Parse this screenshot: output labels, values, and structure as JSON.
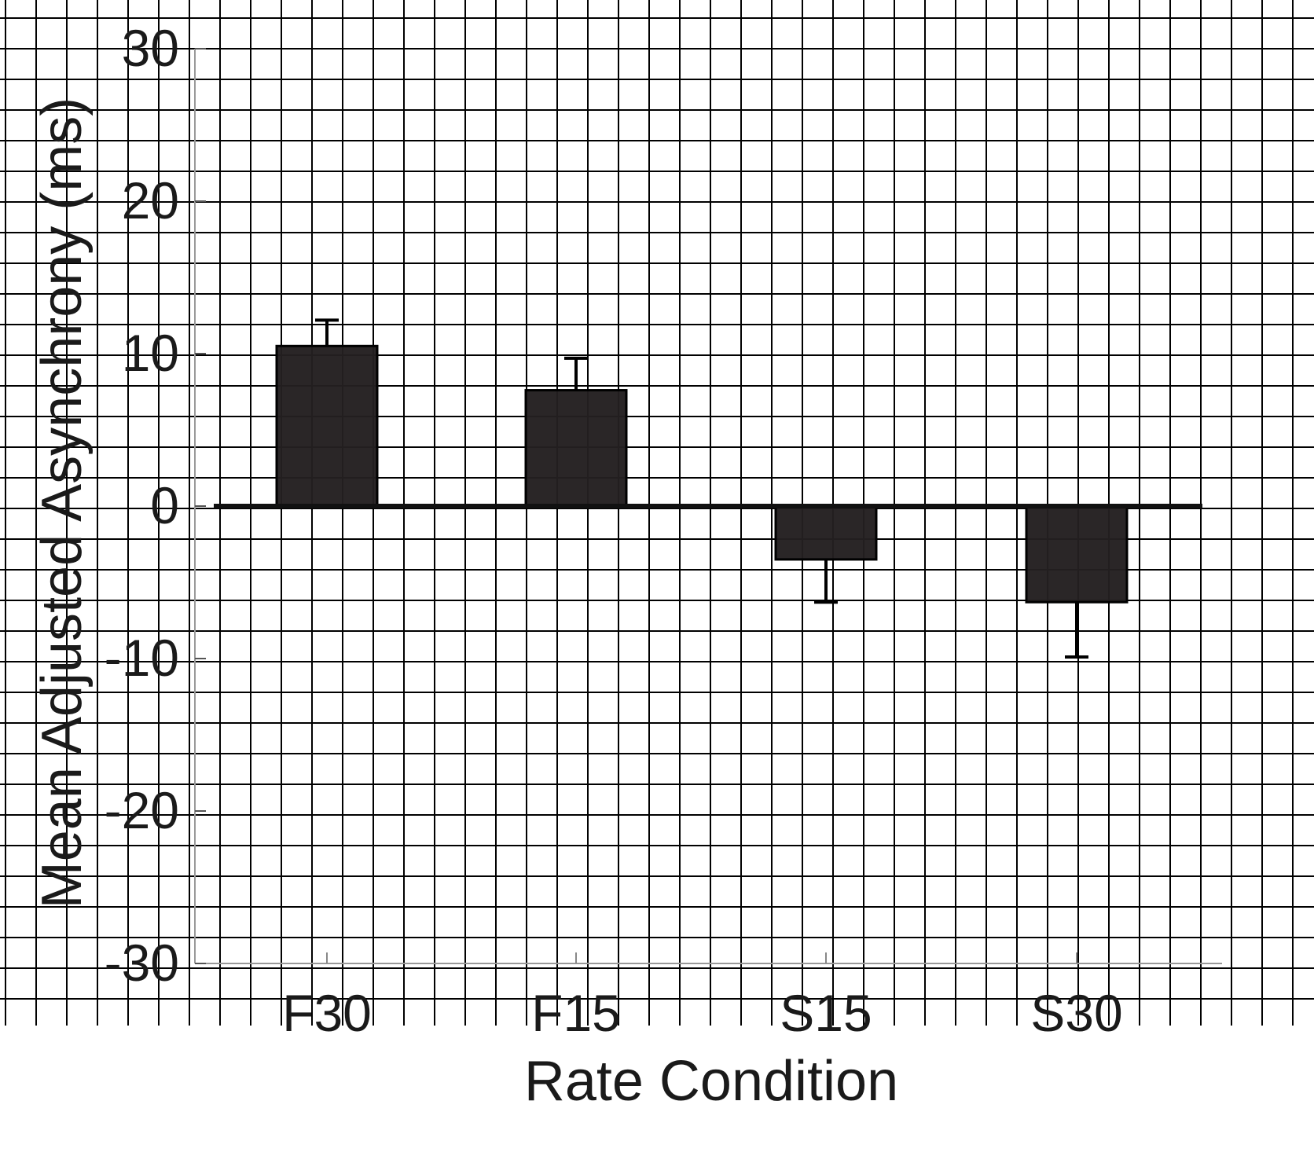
{
  "chart_data": {
    "type": "bar",
    "categories": [
      "F30",
      "F15",
      "S15",
      "S30"
    ],
    "values": [
      10.5,
      7.6,
      -3.5,
      -6.3
    ],
    "error": [
      1.7,
      2.1,
      2.8,
      3.6
    ],
    "xlabel": "Rate Condition",
    "ylabel": "Mean Adjusted Asynchrony (ms)",
    "ylim": [
      -30,
      30
    ],
    "yticks": [
      30,
      20,
      10,
      0,
      -10,
      -20,
      -30
    ],
    "ytick_labels": [
      "30",
      "20",
      "10",
      "0",
      "-10",
      "-20",
      "-30"
    ],
    "grid": true,
    "bar_color": "#231f20",
    "grid_color": "#000000"
  }
}
